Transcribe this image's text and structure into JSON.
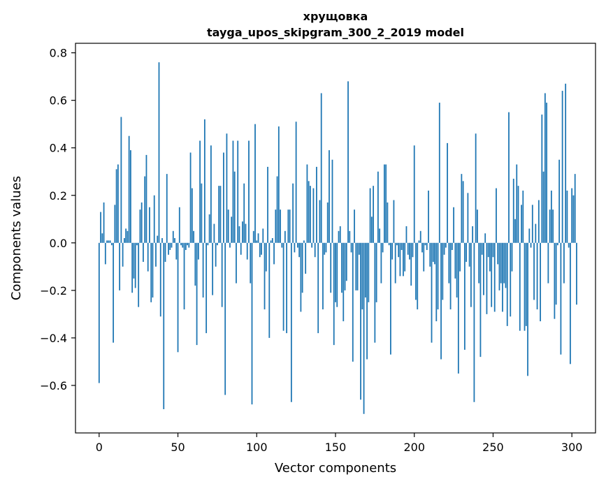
{
  "chart_data": {
    "type": "bar",
    "title_line1": "хрущовка",
    "title_line2": "tayga_upos_skipgram_300_2_2019 model",
    "xlabel": "Vector components",
    "ylabel": "Components values",
    "xlim": [
      -15,
      315
    ],
    "ylim": [
      -0.8,
      0.84
    ],
    "bar_color": "#1f77b4",
    "x_ticks": [
      0,
      50,
      100,
      150,
      200,
      250,
      300
    ],
    "x_tick_labels": [
      "0",
      "50",
      "100",
      "150",
      "200",
      "250",
      "300"
    ],
    "y_ticks": [
      -0.6,
      -0.4,
      -0.2,
      0.0,
      0.2,
      0.4,
      0.6,
      0.8
    ],
    "y_tick_labels": [
      "−0.6",
      "−0.4",
      "−0.2",
      "0.0",
      "0.2",
      "0.4",
      "0.6",
      "0.8"
    ],
    "values": [
      -0.59,
      0.13,
      0.04,
      0.17,
      -0.09,
      0.01,
      0.01,
      0.01,
      -0.01,
      -0.42,
      0.16,
      0.31,
      0.33,
      -0.2,
      0.53,
      -0.1,
      0.02,
      0.06,
      0.05,
      0.45,
      0.39,
      -0.21,
      -0.15,
      -0.19,
      -0.01,
      -0.27,
      0.14,
      0.17,
      -0.08,
      0.28,
      0.37,
      -0.12,
      0.15,
      -0.25,
      -0.23,
      0.2,
      -0.1,
      0.03,
      0.76,
      -0.31,
      0.02,
      -0.7,
      -0.08,
      0.29,
      -0.05,
      -0.03,
      -0.02,
      0.05,
      0.02,
      -0.07,
      -0.46,
      0.15,
      -0.01,
      -0.02,
      -0.28,
      -0.03,
      -0.01,
      -0.02,
      0.38,
      0.23,
      0.05,
      -0.18,
      -0.43,
      -0.07,
      0.43,
      0.25,
      -0.23,
      0.52,
      -0.38,
      -0.01,
      0.12,
      0.41,
      -0.22,
      0.08,
      -0.1,
      -0.01,
      0.24,
      0.24,
      -0.27,
      0.38,
      -0.64,
      0.46,
      0.14,
      -0.02,
      0.11,
      0.43,
      0.3,
      -0.17,
      0.43,
      0.07,
      -0.05,
      0.09,
      0.25,
      0.08,
      -0.07,
      0.43,
      -0.17,
      -0.68,
      0.05,
      0.5,
      0.01,
      0.04,
      -0.06,
      -0.05,
      0.06,
      -0.28,
      -0.12,
      0.32,
      -0.4,
      0.01,
      0.02,
      -0.09,
      0.14,
      0.28,
      0.49,
      0.14,
      -0.02,
      -0.37,
      0.05,
      -0.38,
      0.14,
      0.14,
      -0.67,
      0.25,
      -0.04,
      0.51,
      -0.02,
      -0.06,
      -0.29,
      -0.21,
      0.01,
      -0.13,
      0.33,
      0.26,
      0.24,
      -0.02,
      0.23,
      -0.06,
      0.32,
      -0.38,
      0.18,
      0.63,
      -0.28,
      -0.05,
      -0.04,
      0.17,
      0.39,
      -0.21,
      0.35,
      -0.43,
      -0.25,
      -0.27,
      0.05,
      0.07,
      -0.21,
      -0.33,
      -0.2,
      -0.16,
      0.68,
      0.05,
      -0.04,
      -0.5,
      0.14,
      -0.2,
      -0.2,
      -0.05,
      -0.66,
      -0.28,
      -0.72,
      -0.23,
      -0.49,
      -0.25,
      0.23,
      0.11,
      0.24,
      -0.42,
      -0.25,
      0.3,
      0.06,
      -0.17,
      -0.04,
      0.33,
      0.33,
      0.17,
      -0.01,
      -0.47,
      -0.07,
      0.18,
      -0.17,
      -0.01,
      -0.06,
      -0.14,
      -0.03,
      -0.14,
      -0.12,
      0.07,
      -0.05,
      -0.07,
      -0.18,
      -0.06,
      0.41,
      -0.24,
      -0.28,
      0.01,
      0.05,
      -0.04,
      -0.12,
      -0.01,
      -0.03,
      0.22,
      -0.1,
      -0.42,
      -0.08,
      -0.09,
      -0.33,
      -0.28,
      0.59,
      -0.49,
      -0.24,
      -0.05,
      -0.02,
      0.42,
      -0.17,
      -0.28,
      -0.03,
      0.15,
      -0.15,
      -0.23,
      -0.55,
      -0.12,
      0.29,
      0.26,
      -0.45,
      -0.08,
      0.21,
      -0.1,
      -0.27,
      0.07,
      -0.67,
      0.46,
      0.14,
      -0.17,
      -0.48,
      -0.05,
      -0.22,
      0.04,
      -0.3,
      -0.06,
      -0.12,
      -0.27,
      -0.06,
      -0.29,
      0.23,
      -0.09,
      -0.2,
      -0.17,
      -0.29,
      -0.17,
      -0.19,
      -0.35,
      0.55,
      -0.31,
      -0.12,
      0.27,
      0.1,
      0.33,
      0.24,
      -0.37,
      0.16,
      0.22,
      -0.37,
      -0.35,
      -0.56,
      0.06,
      -0.02,
      0.16,
      -0.24,
      0.08,
      -0.28,
      0.18,
      -0.33,
      0.54,
      0.3,
      0.63,
      0.59,
      -0.17,
      0.14,
      0.22,
      0.14,
      -0.32,
      -0.26,
      -0.01,
      0.35,
      -0.47,
      0.64,
      -0.17,
      0.67,
      0.22,
      -0.02,
      -0.51,
      0.23,
      0.2,
      0.29,
      -0.26
    ]
  }
}
